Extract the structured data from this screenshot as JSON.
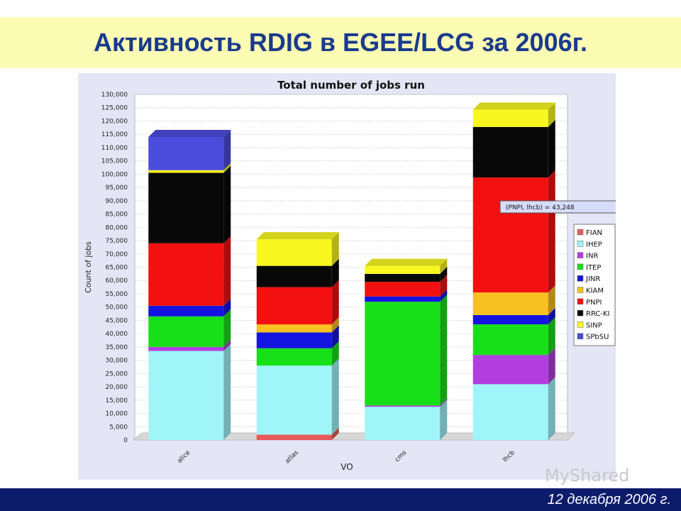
{
  "slide": {
    "title": "Активность RDIG в EGEE/LCG за 2006г.",
    "footer_date": "12 декабря 2006 г.",
    "watermark": "MyShared"
  },
  "chart_data": {
    "type": "bar",
    "stacked": true,
    "title": "Total number of jobs run",
    "xlabel": "VO",
    "ylabel": "Count of jobs",
    "ylim": [
      0,
      130000
    ],
    "yticks": [
      "0",
      "5,000",
      "10,000",
      "15,000",
      "20,000",
      "25,000",
      "30,000",
      "35,000",
      "40,000",
      "45,000",
      "50,000",
      "55,000",
      "60,000",
      "65,000",
      "70,000",
      "75,000",
      "80,000",
      "85,000",
      "90,000",
      "95,000",
      "100,000",
      "105,000",
      "110,000",
      "115,000",
      "120,000",
      "125,000",
      "130,000"
    ],
    "categories": [
      "alice",
      "atlas",
      "cms",
      "lhcb"
    ],
    "series": [
      {
        "name": "FIAN",
        "color": "#e85a5a",
        "values": [
          0,
          2000,
          0,
          0
        ]
      },
      {
        "name": "IHEP",
        "color": "#9ff5f8",
        "values": [
          33500,
          26000,
          12500,
          21000
        ]
      },
      {
        "name": "INR",
        "color": "#b23ee0",
        "values": [
          1500,
          0,
          500,
          11000
        ]
      },
      {
        "name": "ITEP",
        "color": "#18e018",
        "values": [
          11500,
          6500,
          39000,
          11500
        ]
      },
      {
        "name": "JINR",
        "color": "#1414e0",
        "values": [
          4000,
          6000,
          2000,
          3500
        ]
      },
      {
        "name": "KIAM",
        "color": "#f8c020",
        "values": [
          0,
          3000,
          0,
          8500
        ]
      },
      {
        "name": "PNPI",
        "color": "#f21010",
        "values": [
          23500,
          14000,
          5500,
          43248
        ]
      },
      {
        "name": "RRC-KI",
        "color": "#080808",
        "values": [
          26500,
          8000,
          3000,
          19000
        ]
      },
      {
        "name": "SINP",
        "color": "#f8f820",
        "values": [
          1000,
          10000,
          3000,
          6500
        ]
      },
      {
        "name": "SPbSU",
        "color": "#4b4bdc",
        "values": [
          12500,
          0,
          0,
          0
        ]
      }
    ],
    "tooltip": "(PNPI, lhcb) = 43,248",
    "legend_position": "right",
    "grid": true
  }
}
